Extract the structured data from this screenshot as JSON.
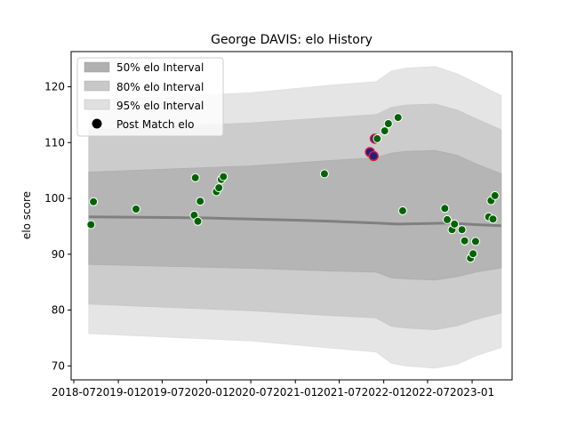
{
  "chart_data": {
    "type": "scatter",
    "title": "George DAVIS: elo History",
    "xlabel": "",
    "ylabel": "elo score",
    "x_ticks": [
      "2018-07",
      "2019-01",
      "2019-07",
      "2020-01",
      "2020-07",
      "2021-01",
      "2021-07",
      "2022-01",
      "2022-07",
      "2023-01"
    ],
    "y_ticks": [
      70,
      80,
      90,
      100,
      110,
      120
    ],
    "xlim": [
      "2018-06-20",
      "2023-06-15"
    ],
    "ylim": [
      67.5,
      126.3
    ],
    "grid": false,
    "legend_position": "top-left",
    "legend": [
      {
        "label": "50% elo Interval",
        "color": "#b0b0b0"
      },
      {
        "label": "80% elo Interval",
        "color": "#c8c8c8"
      },
      {
        "label": "95% elo Interval",
        "color": "#e0e0e0"
      },
      {
        "label": "Post Match elo",
        "color": "#000000"
      }
    ],
    "colors": {
      "band50": "#b0b0b0",
      "band80": "#c8c8c8",
      "band95": "#e0e0e0",
      "mean_line": "#808080",
      "point_fill": "#006400",
      "point_edge": "#ffffff",
      "highlight_edge": "#dd1c3a",
      "highlight_fill": "#1a237e"
    },
    "bands": [
      {
        "name": "95%",
        "x": [
          "2018-09-01",
          "2020-07-01",
          "2021-06-01",
          "2021-12-01",
          "2022-02-01",
          "2022-04-01",
          "2022-08-01",
          "2022-11-01",
          "2023-01-15",
          "2023-05-01"
        ],
        "lower": [
          75.8,
          74.5,
          73.2,
          72.5,
          70.5,
          70.0,
          69.6,
          70.3,
          71.8,
          73.3
        ],
        "upper": [
          117.6,
          118.9,
          120.3,
          120.9,
          122.8,
          123.3,
          123.6,
          122.3,
          120.7,
          118.4
        ]
      },
      {
        "name": "80%",
        "x": [
          "2018-09-01",
          "2020-07-01",
          "2021-06-01",
          "2021-12-01",
          "2022-02-01",
          "2022-04-01",
          "2022-08-01",
          "2022-11-01",
          "2023-01-15",
          "2023-05-01"
        ],
        "lower": [
          81.1,
          79.9,
          79.0,
          78.6,
          77.1,
          76.8,
          76.5,
          77.2,
          78.3,
          79.5
        ],
        "upper": [
          112.3,
          113.5,
          114.5,
          115.0,
          116.3,
          116.7,
          116.9,
          115.8,
          114.3,
          112.3
        ]
      },
      {
        "name": "50%",
        "x": [
          "2018-09-01",
          "2020-07-01",
          "2021-06-01",
          "2021-12-01",
          "2022-02-01",
          "2022-04-01",
          "2022-08-01",
          "2022-11-01",
          "2023-01-15",
          "2023-05-01"
        ],
        "lower": [
          88.2,
          87.5,
          87.0,
          86.8,
          85.8,
          85.6,
          85.4,
          86.0,
          86.8,
          87.6
        ],
        "upper": [
          104.7,
          105.8,
          106.8,
          107.3,
          108.1,
          108.4,
          108.6,
          107.7,
          106.2,
          104.4
        ]
      }
    ],
    "mean_line": {
      "x": [
        "2018-09-01",
        "2019-06-01",
        "2020-01-01",
        "2020-07-01",
        "2021-01-01",
        "2021-06-01",
        "2021-12-01",
        "2022-03-01",
        "2022-07-01",
        "2022-10-01",
        "2023-01-15",
        "2023-05-01"
      ],
      "y": [
        96.7,
        96.6,
        96.5,
        96.3,
        96.1,
        95.9,
        95.6,
        95.4,
        95.5,
        95.6,
        95.3,
        95.1
      ]
    },
    "points": [
      {
        "x": "2018-09-10",
        "y": 95.3
      },
      {
        "x": "2018-09-20",
        "y": 99.4
      },
      {
        "x": "2019-03-15",
        "y": 98.1
      },
      {
        "x": "2019-11-10",
        "y": 97.0
      },
      {
        "x": "2019-11-15",
        "y": 103.7
      },
      {
        "x": "2019-11-25",
        "y": 95.9
      },
      {
        "x": "2019-12-05",
        "y": 99.5
      },
      {
        "x": "2020-02-10",
        "y": 101.2
      },
      {
        "x": "2020-02-20",
        "y": 101.9
      },
      {
        "x": "2020-03-01",
        "y": 103.4
      },
      {
        "x": "2020-03-10",
        "y": 103.9
      },
      {
        "x": "2021-05-01",
        "y": 104.4
      },
      {
        "x": "2021-11-05",
        "y": 108.3,
        "highlight": true
      },
      {
        "x": "2021-11-20",
        "y": 107.6,
        "highlight": true
      },
      {
        "x": "2021-11-25",
        "y": 110.7,
        "highlight": true
      },
      {
        "x": "2021-12-05",
        "y": 110.7
      },
      {
        "x": "2022-01-05",
        "y": 112.1
      },
      {
        "x": "2022-01-20",
        "y": 113.4
      },
      {
        "x": "2022-03-01",
        "y": 114.5
      },
      {
        "x": "2022-03-20",
        "y": 97.8
      },
      {
        "x": "2022-09-10",
        "y": 98.2
      },
      {
        "x": "2022-09-20",
        "y": 96.2
      },
      {
        "x": "2022-10-10",
        "y": 94.4
      },
      {
        "x": "2022-10-20",
        "y": 95.4
      },
      {
        "x": "2022-11-20",
        "y": 94.4
      },
      {
        "x": "2022-12-01",
        "y": 92.4
      },
      {
        "x": "2022-12-25",
        "y": 89.3
      },
      {
        "x": "2023-01-05",
        "y": 90.1
      },
      {
        "x": "2023-01-15",
        "y": 92.3
      },
      {
        "x": "2023-03-10",
        "y": 96.7
      },
      {
        "x": "2023-03-20",
        "y": 99.6
      },
      {
        "x": "2023-03-28",
        "y": 96.3
      },
      {
        "x": "2023-04-05",
        "y": 100.5
      }
    ]
  }
}
